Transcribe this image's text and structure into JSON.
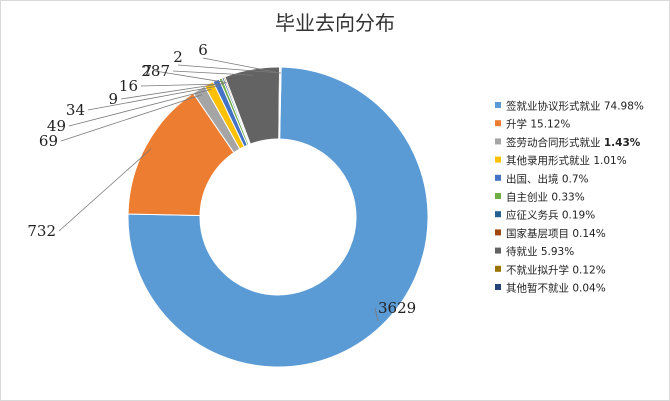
{
  "chart_data": {
    "type": "pie",
    "variant": "donut",
    "title": "毕业去向分布",
    "legend_position": "right",
    "series": [
      {
        "name": "签就业协议形式就业",
        "value": 3629,
        "percent_label": "74.98%",
        "color": "#5b9bd5"
      },
      {
        "name": "升学",
        "value": 732,
        "percent_label": "15.12%",
        "color": "#ed7d31"
      },
      {
        "name": "签劳动合同形式就业",
        "value": 69,
        "percent_label": "1.43%",
        "color": "#a5a5a5",
        "bold_percent": true
      },
      {
        "name": "其他录用形式就业",
        "value": 49,
        "percent_label": "1.01%",
        "color": "#ffc000"
      },
      {
        "name": "出国、出境",
        "value": 34,
        "percent_label": "0.7%",
        "color": "#4472c4"
      },
      {
        "name": "自主创业",
        "value": 16,
        "percent_label": "0.33%",
        "color": "#70ad47"
      },
      {
        "name": "应征义务兵",
        "value": 9,
        "percent_label": "0.19%",
        "color": "#255e91"
      },
      {
        "name": "国家基层项目",
        "value": 7,
        "percent_label": "0.14%",
        "color": "#9e480e"
      },
      {
        "name": "待就业",
        "value": 287,
        "percent_label": "5.93%",
        "color": "#636363"
      },
      {
        "name": "不就业拟升学",
        "value": 6,
        "percent_label": "0.12%",
        "color": "#997300"
      },
      {
        "name": "其他暂不就业",
        "value": 2,
        "percent_label": "0.04%",
        "color": "#264478"
      }
    ]
  }
}
